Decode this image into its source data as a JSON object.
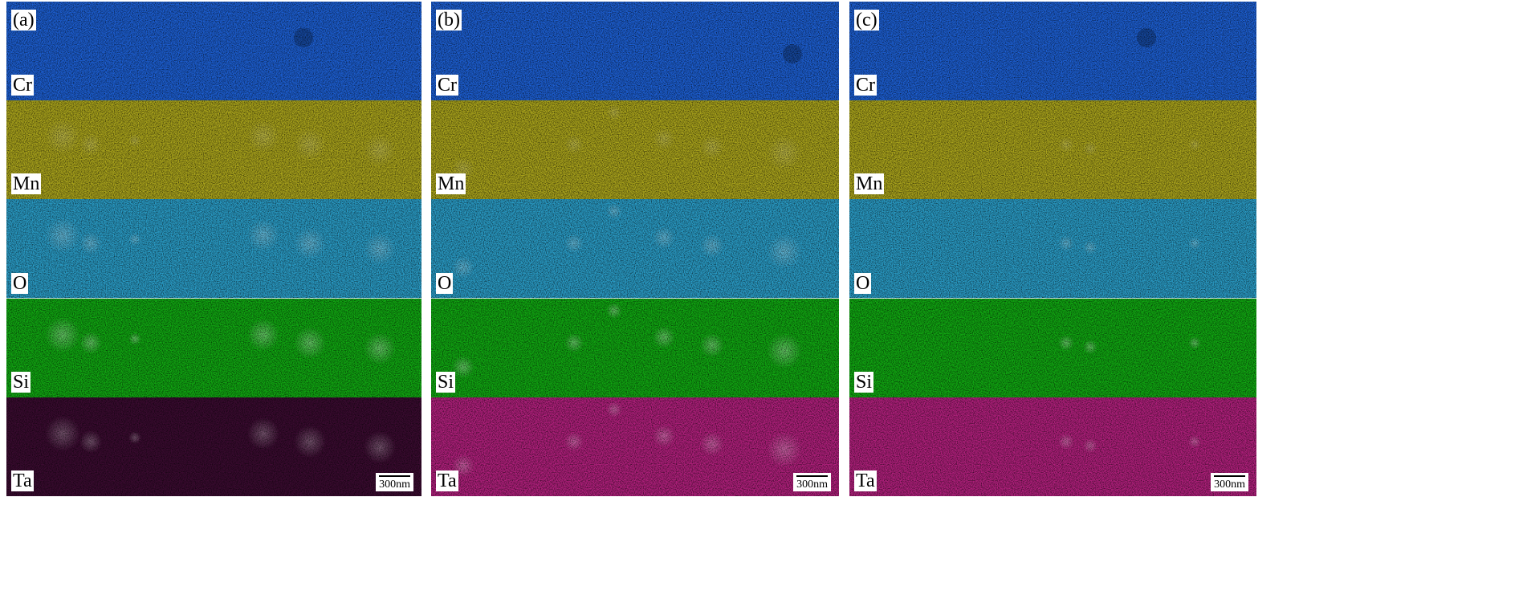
{
  "panels": [
    {
      "label": "(a)",
      "scale_bar": "300nm",
      "maps": [
        {
          "element": "Cr",
          "color": "#1d5fd2"
        },
        {
          "element": "Mn",
          "color": "#aaa41c"
        },
        {
          "element": "O",
          "color": "#2a9cc6"
        },
        {
          "element": "Si",
          "color": "#11a812"
        },
        {
          "element": "Ta",
          "color": "#3a0b30"
        }
      ]
    },
    {
      "label": "(b)",
      "scale_bar": "300nm",
      "maps": [
        {
          "element": "Cr",
          "color": "#1d5fd2"
        },
        {
          "element": "Mn",
          "color": "#aaa41c"
        },
        {
          "element": "O",
          "color": "#2a9cc6"
        },
        {
          "element": "Si",
          "color": "#11a812"
        },
        {
          "element": "Ta",
          "color": "#b0207c"
        }
      ]
    },
    {
      "label": "(c)",
      "scale_bar": "300nm",
      "maps": [
        {
          "element": "Cr",
          "color": "#1d5fd2"
        },
        {
          "element": "Mn",
          "color": "#aaa41c"
        },
        {
          "element": "O",
          "color": "#2a9cc6"
        },
        {
          "element": "Si",
          "color": "#11a812"
        },
        {
          "element": "Ta",
          "color": "#b0207c"
        }
      ]
    }
  ]
}
